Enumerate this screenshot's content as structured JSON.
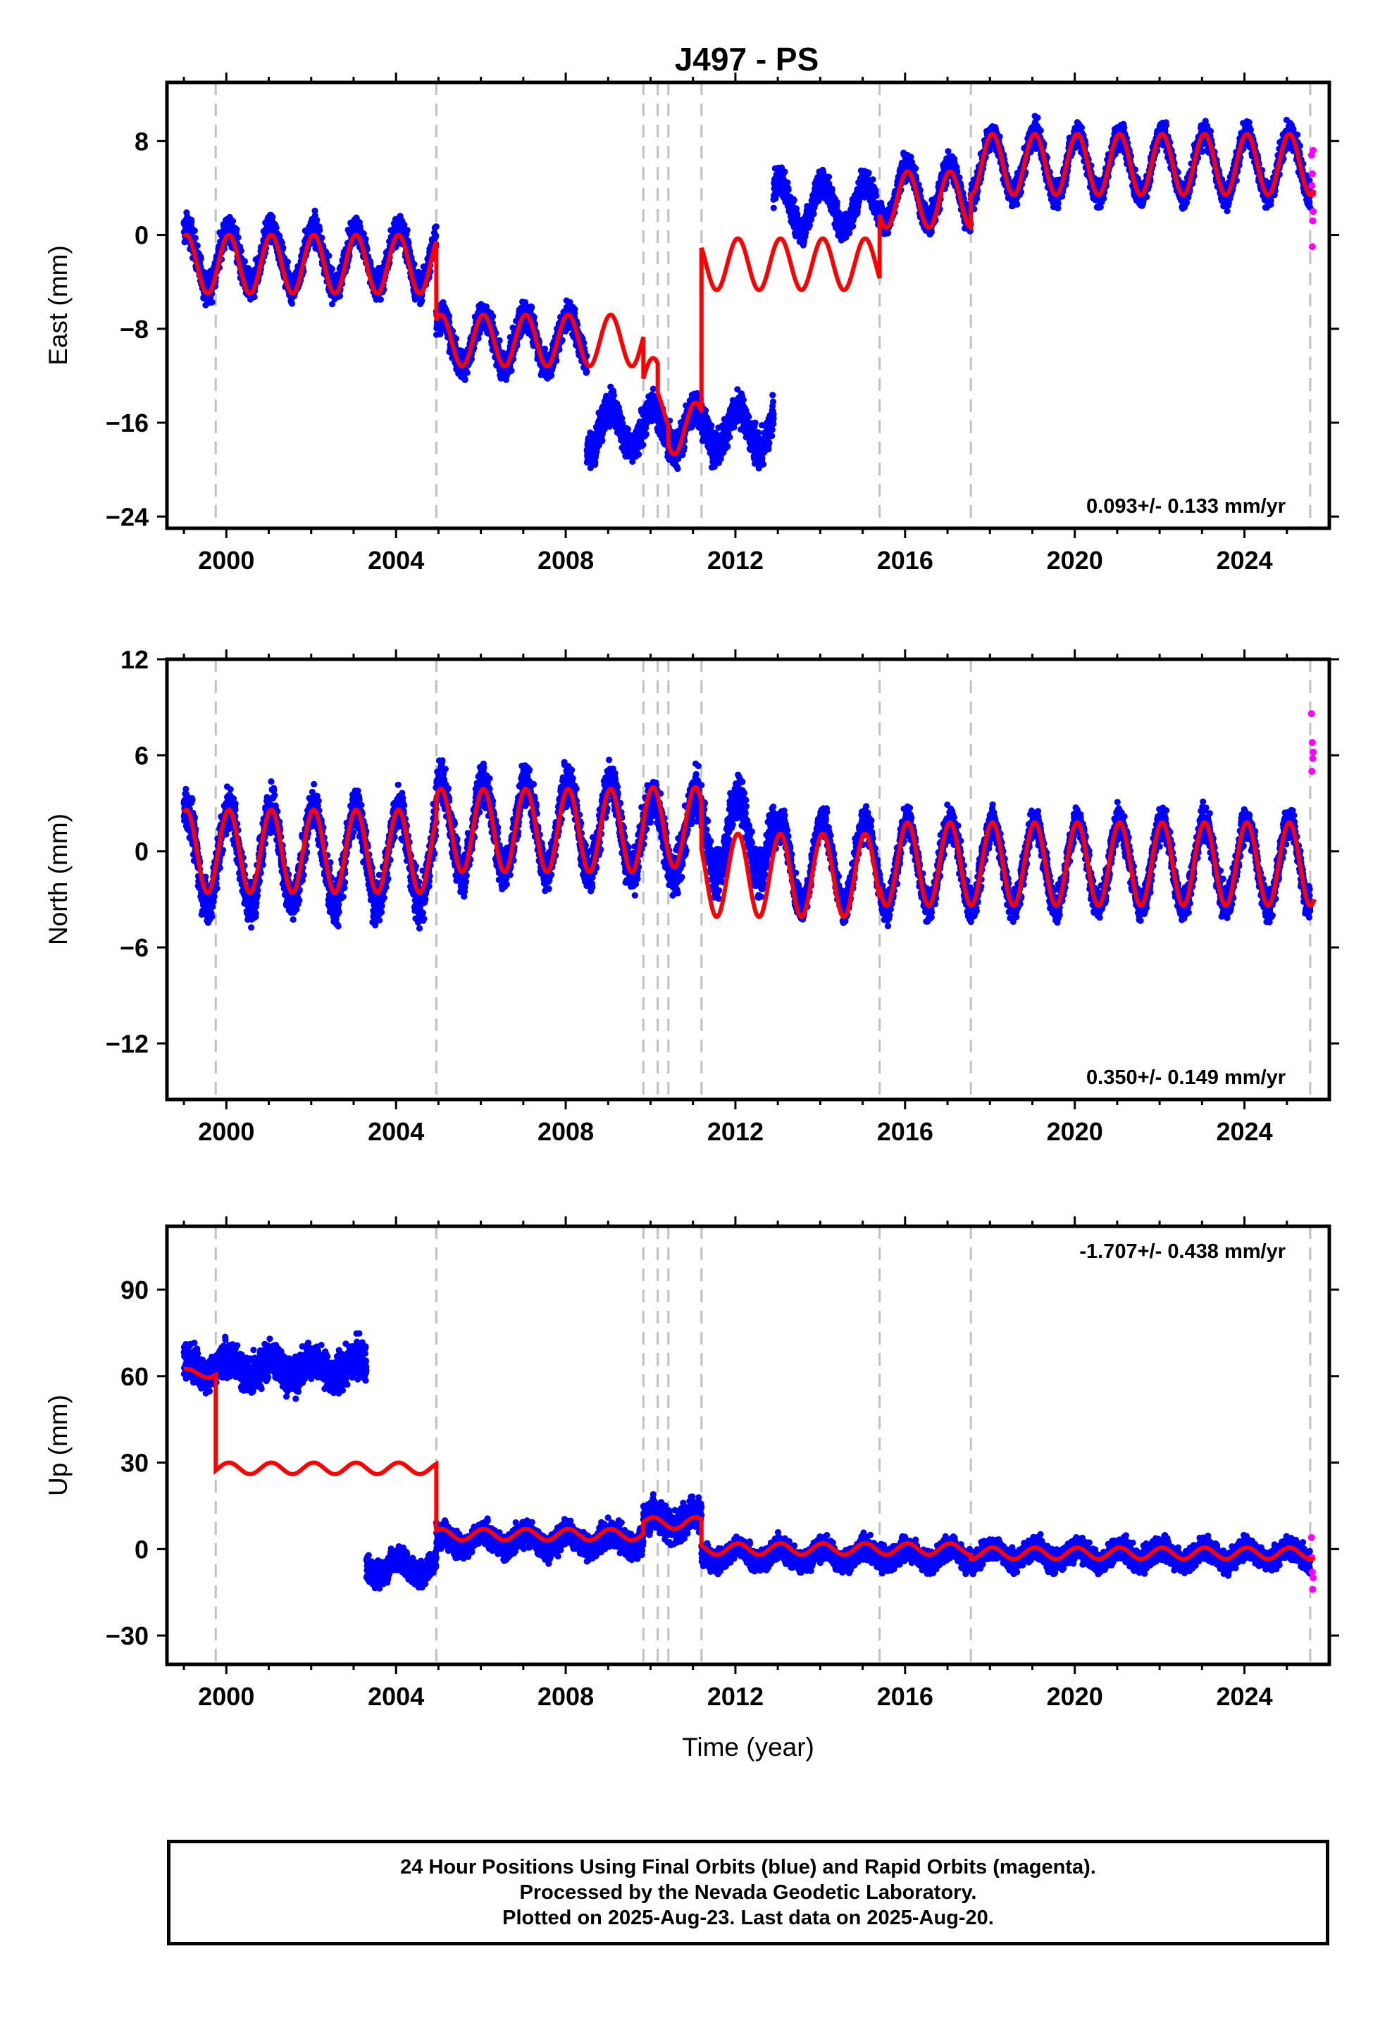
{
  "title": "J497 - PS",
  "footer": {
    "line1": "24 Hour Positions Using Final Orbits (blue) and Rapid Orbits (magenta).",
    "line2": "Processed by the Nevada Geodetic Laboratory.",
    "line3": "Plotted on 2025-Aug-23. Last data on 2025-Aug-20."
  },
  "colors": {
    "final": "#0000ff",
    "rapid": "#ff00ff",
    "model": "#ff0000",
    "steps": "#c0c0c0"
  },
  "chart_data": [
    {
      "type": "scatter",
      "component": "east",
      "ylabel": "East (mm)",
      "xlabel": "",
      "xlim": [
        1998.6,
        2026.0
      ],
      "ylim": [
        -25,
        13
      ],
      "yticks": [
        -24,
        -16,
        -8,
        0,
        8
      ],
      "xticks": [
        2000,
        2004,
        2008,
        2012,
        2016,
        2020,
        2024
      ],
      "rate_label": "0.093+/- 0.133 mm/yr",
      "rate_position": "bottom-right",
      "step_epochs": [
        1999.75,
        2004.95,
        2009.83,
        2010.17,
        2010.42,
        2011.2,
        2015.4,
        2017.55,
        2025.55
      ],
      "model_segments": [
        {
          "t0": 1999.0,
          "t1": 2004.95,
          "offset": -2.5,
          "amp": 2.5
        },
        {
          "t0": 2004.95,
          "t1": 2009.83,
          "offset": -9.0,
          "amp": 2.2
        },
        {
          "t0": 2009.83,
          "t1": 2010.17,
          "offset": -12.5,
          "amp": 2.0
        },
        {
          "t0": 2010.17,
          "t1": 2010.42,
          "offset": -15.0,
          "amp": 2.0
        },
        {
          "t0": 2010.42,
          "t1": 2011.2,
          "offset": -16.5,
          "amp": 2.2
        },
        {
          "t0": 2011.2,
          "t1": 2015.4,
          "offset": -2.5,
          "amp": 2.2
        },
        {
          "t0": 2015.4,
          "t1": 2017.55,
          "offset": 3.0,
          "amp": 2.4
        },
        {
          "t0": 2017.55,
          "t1": 2025.65,
          "offset": 6.0,
          "amp": 2.6
        }
      ],
      "data_segments": [
        {
          "t0": 1999.0,
          "t1": 2004.95,
          "offset": -2.0,
          "amp": 2.5,
          "noise": 1.6
        },
        {
          "t0": 2004.95,
          "t1": 2008.5,
          "offset": -9.0,
          "amp": 2.2,
          "noise": 1.6
        },
        {
          "t0": 2008.5,
          "t1": 2012.9,
          "offset": -16.5,
          "amp": 1.8,
          "noise": 1.9
        },
        {
          "t0": 2012.9,
          "t1": 2015.4,
          "offset": 2.5,
          "amp": 2.0,
          "noise": 1.5
        },
        {
          "t0": 2015.4,
          "t1": 2017.55,
          "offset": 3.5,
          "amp": 2.4,
          "noise": 1.5
        },
        {
          "t0": 2017.55,
          "t1": 2025.55,
          "offset": 6.0,
          "amp": 2.6,
          "noise": 1.4
        }
      ],
      "rapid_points": [
        [
          2025.58,
          6.8
        ],
        [
          2025.6,
          5.2
        ],
        [
          2025.61,
          3.5
        ],
        [
          2025.62,
          2.0
        ],
        [
          2025.6,
          -1.0
        ],
        [
          2025.59,
          4.2
        ],
        [
          2025.62,
          7.2
        ],
        [
          2025.61,
          1.2
        ]
      ]
    },
    {
      "type": "scatter",
      "component": "north",
      "ylabel": "North (mm)",
      "xlabel": "",
      "xlim": [
        1998.6,
        2026.0
      ],
      "ylim": [
        -15.5,
        12
      ],
      "yticks": [
        -12,
        -6,
        0,
        6,
        12
      ],
      "xticks": [
        2000,
        2004,
        2008,
        2012,
        2016,
        2020,
        2024
      ],
      "rate_label": "0.350+/- 0.149 mm/yr",
      "rate_position": "bottom-right",
      "step_epochs": [
        1999.75,
        2004.95,
        2009.83,
        2010.17,
        2010.42,
        2011.2,
        2015.4,
        2017.55,
        2025.55
      ],
      "model_segments": [
        {
          "t0": 1999.0,
          "t1": 2004.95,
          "offset": 0.0,
          "amp": 2.6
        },
        {
          "t0": 2004.95,
          "t1": 2009.83,
          "offset": 1.3,
          "amp": 2.6
        },
        {
          "t0": 2009.83,
          "t1": 2011.2,
          "offset": 1.5,
          "amp": 2.5
        },
        {
          "t0": 2011.2,
          "t1": 2015.4,
          "offset": -1.5,
          "amp": 2.6
        },
        {
          "t0": 2015.4,
          "t1": 2025.65,
          "offset": -0.8,
          "amp": 2.6
        }
      ],
      "data_segments": [
        {
          "t0": 1999.0,
          "t1": 2004.95,
          "offset": -0.3,
          "amp": 3.0,
          "noise": 1.8
        },
        {
          "t0": 2004.95,
          "t1": 2009.83,
          "offset": 1.5,
          "amp": 2.8,
          "noise": 1.7
        },
        {
          "t0": 2009.83,
          "t1": 2012.9,
          "offset": 1.0,
          "amp": 2.5,
          "noise": 1.8
        },
        {
          "t0": 2012.9,
          "t1": 2025.55,
          "offset": -0.8,
          "amp": 2.6,
          "noise": 1.3
        }
      ],
      "rapid_points": [
        [
          2025.58,
          8.6
        ],
        [
          2025.6,
          6.8
        ],
        [
          2025.61,
          5.8
        ],
        [
          2025.59,
          5.0
        ],
        [
          2025.62,
          6.2
        ]
      ]
    },
    {
      "type": "scatter",
      "component": "up",
      "ylabel": "Up (mm)",
      "xlabel": "Time (year)",
      "xlim": [
        1998.6,
        2026.0
      ],
      "ylim": [
        -40,
        112
      ],
      "yticks": [
        -30,
        0,
        30,
        60,
        90
      ],
      "xticks": [
        2000,
        2004,
        2008,
        2012,
        2016,
        2020,
        2024
      ],
      "rate_label": "-1.707+/- 0.438 mm/yr",
      "rate_position": "top-right",
      "step_epochs": [
        1999.75,
        2004.95,
        2009.83,
        2010.17,
        2010.42,
        2011.2,
        2015.4,
        2017.55,
        2025.55
      ],
      "model_segments": [
        {
          "t0": 1999.0,
          "t1": 1999.75,
          "offset": 61.0,
          "amp": 1.5
        },
        {
          "t0": 1999.75,
          "t1": 2004.95,
          "offset": 28.0,
          "amp": 2.0
        },
        {
          "t0": 2004.95,
          "t1": 2009.83,
          "offset": 5.0,
          "amp": 2.0
        },
        {
          "t0": 2009.83,
          "t1": 2011.2,
          "offset": 9.0,
          "amp": 2.0
        },
        {
          "t0": 2011.2,
          "t1": 2017.55,
          "offset": 0.0,
          "amp": 2.0
        },
        {
          "t0": 2017.55,
          "t1": 2025.65,
          "offset": -1.5,
          "amp": 2.0
        }
      ],
      "data_segments": [
        {
          "t0": 1999.0,
          "t1": 2003.3,
          "offset": 63.0,
          "amp": 3.0,
          "noise": 8.0
        },
        {
          "t0": 2003.3,
          "t1": 2004.95,
          "offset": -6.0,
          "amp": 3.0,
          "noise": 5.5
        },
        {
          "t0": 2004.95,
          "t1": 2009.83,
          "offset": 3.0,
          "amp": 2.5,
          "noise": 5.5
        },
        {
          "t0": 2009.83,
          "t1": 2011.2,
          "offset": 10.0,
          "amp": 2.5,
          "noise": 7.5
        },
        {
          "t0": 2011.2,
          "t1": 2025.55,
          "offset": -2.0,
          "amp": 2.5,
          "noise": 5.0
        }
      ],
      "rapid_points": [
        [
          2025.58,
          4.0
        ],
        [
          2025.6,
          -8.0
        ],
        [
          2025.61,
          -14.0
        ],
        [
          2025.59,
          -3.0
        ],
        [
          2025.62,
          -10.0
        ]
      ]
    }
  ]
}
